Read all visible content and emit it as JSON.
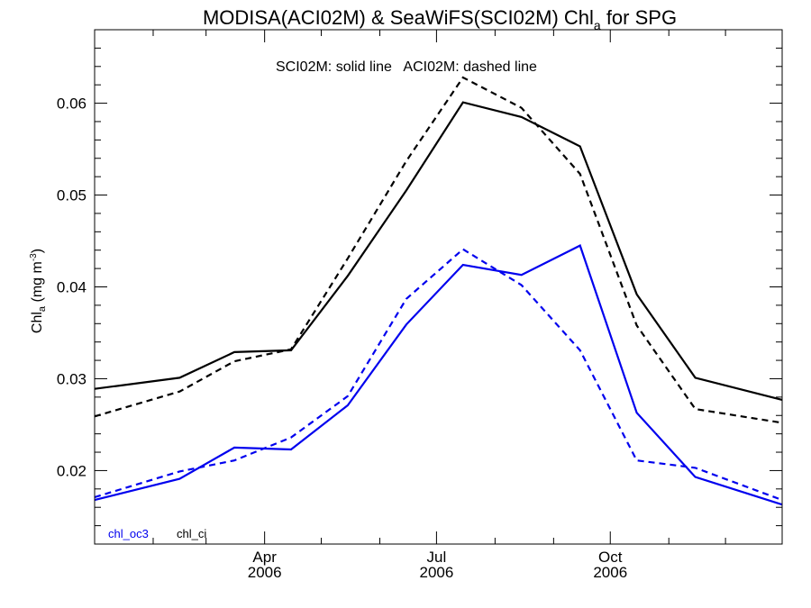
{
  "chart_data": {
    "type": "line",
    "title": {
      "main": "MODISA(ACI02M) & SeaWiFS(SCI02M)  Chl",
      "sub": "a",
      "tail": " for SPG"
    },
    "subtitle": "SCI02M: solid line   ACI02M: dashed line",
    "ylabel": {
      "main": "Chl",
      "sub": "a",
      "units": " (mg m",
      "sup": "-3",
      "close": ")"
    },
    "xlim": [
      "2006-01-01",
      "2006-12-31"
    ],
    "ylim": [
      0.012,
      0.068
    ],
    "yticks": [
      {
        "value": 0.02,
        "label": "0.02"
      },
      {
        "value": 0.03,
        "label": "0.03"
      },
      {
        "value": 0.04,
        "label": "0.04"
      },
      {
        "value": 0.05,
        "label": "0.05"
      },
      {
        "value": 0.06,
        "label": "0.06"
      }
    ],
    "yminor_step": 0.002,
    "xticks": [
      {
        "date": "2006-04-01",
        "label": "Apr",
        "label2": "2006"
      },
      {
        "date": "2006-07-01",
        "label": "Jul",
        "label2": "2006"
      },
      {
        "date": "2006-10-01",
        "label": "Oct",
        "label2": "2006"
      }
    ],
    "xminor": [
      "2006-02-01",
      "2006-03-01",
      "2006-05-01",
      "2006-06-01",
      "2006-08-01",
      "2006-09-01",
      "2006-11-01",
      "2006-12-01"
    ],
    "x": [
      "2006-01-01",
      "2006-02-15",
      "2006-03-16",
      "2006-04-15",
      "2006-05-15",
      "2006-06-15",
      "2006-07-15",
      "2006-08-15",
      "2006-09-15",
      "2006-10-15",
      "2006-11-15",
      "2006-12-31"
    ],
    "series": [
      {
        "name": "chl_ci",
        "product": "SCI02M",
        "color": "#000000",
        "dash": "solid",
        "values": [
          0.0289,
          0.0301,
          0.0329,
          0.0331,
          0.0412,
          0.0505,
          0.0601,
          0.0585,
          0.0553,
          0.0392,
          0.0301,
          0.0277
        ]
      },
      {
        "name": "chl_ci",
        "product": "ACI02M",
        "color": "#000000",
        "dash": "dashed",
        "values": [
          0.0259,
          0.0286,
          0.0319,
          0.0332,
          0.0431,
          0.0537,
          0.0628,
          0.0595,
          0.0523,
          0.0358,
          0.0267,
          0.0252
        ]
      },
      {
        "name": "chl_oc3",
        "product": "SCI02M",
        "color": "#0000ee",
        "dash": "solid",
        "values": [
          0.0168,
          0.0191,
          0.0225,
          0.0223,
          0.0271,
          0.0359,
          0.0424,
          0.0413,
          0.0445,
          0.0263,
          0.0193,
          0.0163
        ]
      },
      {
        "name": "chl_oc3",
        "product": "ACI02M",
        "color": "#0000ee",
        "dash": "dashed",
        "values": [
          0.0171,
          0.0199,
          0.0211,
          0.0236,
          0.0281,
          0.0387,
          0.0441,
          0.0402,
          0.0331,
          0.0211,
          0.0203,
          0.0168
        ]
      }
    ],
    "legend": {
      "placement": "bottom-left",
      "items": [
        {
          "label": "chl_oc3",
          "color": "#0000ee"
        },
        {
          "label": "chl_ci",
          "color": "#000000"
        }
      ]
    },
    "grid": false
  }
}
